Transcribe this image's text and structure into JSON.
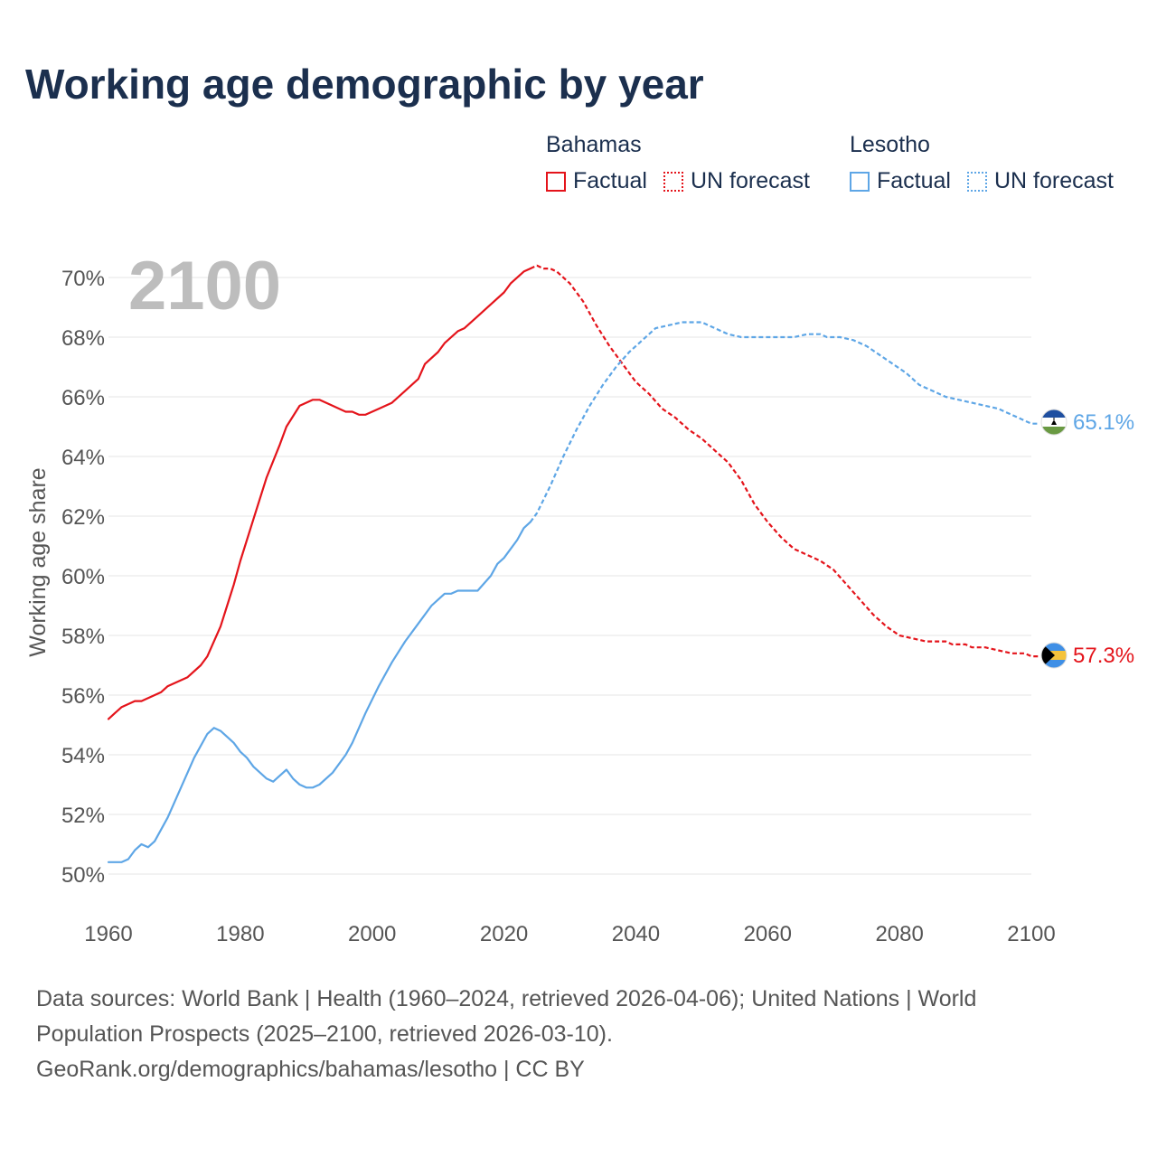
{
  "title": "Working age demographic by year",
  "legend": {
    "groups": [
      {
        "name": "Bahamas",
        "color": "#e4141b",
        "factual_label": "Factual",
        "forecast_label": "UN forecast"
      },
      {
        "name": "Lesotho",
        "color": "#5ea6e6",
        "factual_label": "Factual",
        "forecast_label": "UN forecast"
      }
    ]
  },
  "footer": {
    "sources": "Data sources: World Bank | Health (1960–2024, retrieved 2026-04-06); United Nations | World Population Prospects (2025–2100, retrieved 2026-03-10).",
    "url": "GeoRank.org/demographics/bahamas/lesotho | CC BY"
  },
  "chart_data": {
    "type": "line",
    "title": "Working age demographic by year",
    "year_label": "2100",
    "xlabel": "",
    "ylabel": "Working age share",
    "xlim": [
      1960,
      2100
    ],
    "ylim": [
      49,
      71
    ],
    "x_ticks": [
      "1960",
      "1980",
      "2000",
      "2020",
      "2040",
      "2060",
      "2080",
      "2100"
    ],
    "y_ticks": [
      "50%",
      "52%",
      "54%",
      "56%",
      "58%",
      "60%",
      "62%",
      "64%",
      "66%",
      "68%",
      "70%"
    ],
    "y_tick_values": [
      50,
      52,
      54,
      56,
      58,
      60,
      62,
      64,
      66,
      68,
      70
    ],
    "factual_end_year": 2024,
    "series": [
      {
        "name": "Bahamas",
        "color": "#e4141b",
        "end_label": "57.3%",
        "flag": "bahamas-flag",
        "points": [
          [
            1960,
            55.2
          ],
          [
            1962,
            55.6
          ],
          [
            1964,
            55.8
          ],
          [
            1965,
            55.8
          ],
          [
            1968,
            56.1
          ],
          [
            1969,
            56.3
          ],
          [
            1972,
            56.6
          ],
          [
            1974,
            57.0
          ],
          [
            1975,
            57.3
          ],
          [
            1977,
            58.3
          ],
          [
            1979,
            59.7
          ],
          [
            1980,
            60.5
          ],
          [
            1982,
            61.9
          ],
          [
            1984,
            63.3
          ],
          [
            1986,
            64.4
          ],
          [
            1987,
            65.0
          ],
          [
            1989,
            65.7
          ],
          [
            1991,
            65.9
          ],
          [
            1992,
            65.9
          ],
          [
            1994,
            65.7
          ],
          [
            1996,
            65.5
          ],
          [
            1997,
            65.5
          ],
          [
            1998,
            65.4
          ],
          [
            1999,
            65.4
          ],
          [
            2001,
            65.6
          ],
          [
            2003,
            65.8
          ],
          [
            2005,
            66.2
          ],
          [
            2007,
            66.6
          ],
          [
            2008,
            67.1
          ],
          [
            2010,
            67.5
          ],
          [
            2011,
            67.8
          ],
          [
            2013,
            68.2
          ],
          [
            2014,
            68.3
          ],
          [
            2016,
            68.7
          ],
          [
            2018,
            69.1
          ],
          [
            2020,
            69.5
          ],
          [
            2021,
            69.8
          ],
          [
            2023,
            70.2
          ],
          [
            2024,
            70.3
          ]
        ],
        "forecast_points": [
          [
            2024,
            70.3
          ],
          [
            2025,
            70.4
          ],
          [
            2026,
            70.3
          ],
          [
            2027,
            70.3
          ],
          [
            2028,
            70.2
          ],
          [
            2030,
            69.8
          ],
          [
            2032,
            69.2
          ],
          [
            2034,
            68.4
          ],
          [
            2036,
            67.7
          ],
          [
            2038,
            67.1
          ],
          [
            2040,
            66.5
          ],
          [
            2042,
            66.1
          ],
          [
            2044,
            65.6
          ],
          [
            2046,
            65.3
          ],
          [
            2048,
            64.9
          ],
          [
            2050,
            64.6
          ],
          [
            2052,
            64.2
          ],
          [
            2054,
            63.8
          ],
          [
            2056,
            63.2
          ],
          [
            2058,
            62.4
          ],
          [
            2060,
            61.8
          ],
          [
            2062,
            61.3
          ],
          [
            2064,
            60.9
          ],
          [
            2066,
            60.7
          ],
          [
            2068,
            60.5
          ],
          [
            2070,
            60.2
          ],
          [
            2072,
            59.7
          ],
          [
            2074,
            59.2
          ],
          [
            2076,
            58.7
          ],
          [
            2078,
            58.3
          ],
          [
            2080,
            58.0
          ],
          [
            2082,
            57.9
          ],
          [
            2084,
            57.8
          ],
          [
            2087,
            57.8
          ],
          [
            2088,
            57.7
          ],
          [
            2090,
            57.7
          ],
          [
            2091,
            57.6
          ],
          [
            2093,
            57.6
          ],
          [
            2095,
            57.5
          ],
          [
            2097,
            57.4
          ],
          [
            2099,
            57.4
          ],
          [
            2100,
            57.3
          ],
          [
            2101,
            57.3
          ]
        ]
      },
      {
        "name": "Lesotho",
        "color": "#5ea6e6",
        "end_label": "65.1%",
        "flag": "lesotho-flag",
        "points": [
          [
            1960,
            50.4
          ],
          [
            1962,
            50.4
          ],
          [
            1963,
            50.5
          ],
          [
            1964,
            50.8
          ],
          [
            1965,
            51.0
          ],
          [
            1966,
            50.9
          ],
          [
            1967,
            51.1
          ],
          [
            1969,
            51.9
          ],
          [
            1971,
            52.9
          ],
          [
            1973,
            53.9
          ],
          [
            1975,
            54.7
          ],
          [
            1976,
            54.9
          ],
          [
            1977,
            54.8
          ],
          [
            1979,
            54.4
          ],
          [
            1980,
            54.1
          ],
          [
            1981,
            53.9
          ],
          [
            1982,
            53.6
          ],
          [
            1984,
            53.2
          ],
          [
            1985,
            53.1
          ],
          [
            1986,
            53.3
          ],
          [
            1987,
            53.5
          ],
          [
            1988,
            53.2
          ],
          [
            1989,
            53.0
          ],
          [
            1990,
            52.9
          ],
          [
            1991,
            52.9
          ],
          [
            1992,
            53.0
          ],
          [
            1994,
            53.4
          ],
          [
            1996,
            54.0
          ],
          [
            1997,
            54.4
          ],
          [
            1999,
            55.4
          ],
          [
            2001,
            56.3
          ],
          [
            2003,
            57.1
          ],
          [
            2005,
            57.8
          ],
          [
            2007,
            58.4
          ],
          [
            2009,
            59.0
          ],
          [
            2010,
            59.2
          ],
          [
            2011,
            59.4
          ],
          [
            2012,
            59.4
          ],
          [
            2013,
            59.5
          ],
          [
            2016,
            59.5
          ],
          [
            2018,
            60.0
          ],
          [
            2019,
            60.4
          ],
          [
            2020,
            60.6
          ],
          [
            2022,
            61.2
          ],
          [
            2023,
            61.6
          ],
          [
            2024,
            61.8
          ]
        ],
        "forecast_points": [
          [
            2024,
            61.8
          ],
          [
            2025,
            62.1
          ],
          [
            2027,
            63.0
          ],
          [
            2029,
            64.0
          ],
          [
            2031,
            64.9
          ],
          [
            2033,
            65.7
          ],
          [
            2035,
            66.4
          ],
          [
            2037,
            67.0
          ],
          [
            2039,
            67.5
          ],
          [
            2041,
            67.9
          ],
          [
            2043,
            68.3
          ],
          [
            2045,
            68.4
          ],
          [
            2047,
            68.5
          ],
          [
            2050,
            68.5
          ],
          [
            2052,
            68.3
          ],
          [
            2054,
            68.1
          ],
          [
            2056,
            68.0
          ],
          [
            2064,
            68.0
          ],
          [
            2066,
            68.1
          ],
          [
            2068,
            68.1
          ],
          [
            2069,
            68.0
          ],
          [
            2071,
            68.0
          ],
          [
            2073,
            67.9
          ],
          [
            2075,
            67.7
          ],
          [
            2077,
            67.4
          ],
          [
            2079,
            67.1
          ],
          [
            2081,
            66.8
          ],
          [
            2083,
            66.4
          ],
          [
            2085,
            66.2
          ],
          [
            2087,
            66.0
          ],
          [
            2089,
            65.9
          ],
          [
            2091,
            65.8
          ],
          [
            2093,
            65.7
          ],
          [
            2095,
            65.6
          ],
          [
            2097,
            65.4
          ],
          [
            2099,
            65.2
          ],
          [
            2100,
            65.1
          ],
          [
            2101,
            65.1
          ]
        ]
      }
    ]
  }
}
